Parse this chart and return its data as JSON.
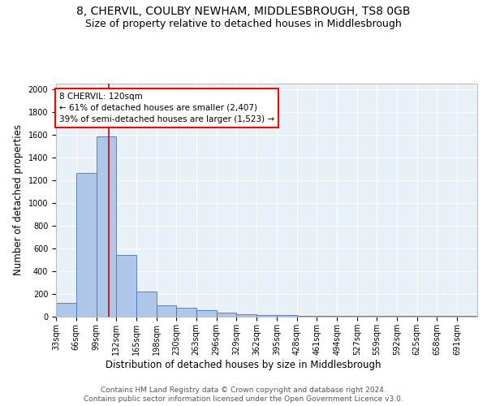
{
  "title": "8, CHERVIL, COULBY NEWHAM, MIDDLESBROUGH, TS8 0GB",
  "subtitle": "Size of property relative to detached houses in Middlesbrough",
  "xlabel": "Distribution of detached houses by size in Middlesbrough",
  "ylabel": "Number of detached properties",
  "footer_line1": "Contains HM Land Registry data © Crown copyright and database right 2024.",
  "footer_line2": "Contains public sector information licensed under the Open Government Licence v3.0.",
  "bin_labels": [
    "33sqm",
    "66sqm",
    "99sqm",
    "132sqm",
    "165sqm",
    "198sqm",
    "230sqm",
    "263sqm",
    "296sqm",
    "329sqm",
    "362sqm",
    "395sqm",
    "428sqm",
    "461sqm",
    "494sqm",
    "527sqm",
    "559sqm",
    "592sqm",
    "625sqm",
    "658sqm",
    "691sqm"
  ],
  "bin_edges": [
    33,
    66,
    99,
    132,
    165,
    198,
    230,
    263,
    296,
    329,
    362,
    395,
    428,
    461,
    494,
    527,
    559,
    592,
    625,
    658,
    691,
    724
  ],
  "values": [
    120,
    1260,
    1580,
    540,
    220,
    100,
    75,
    55,
    35,
    20,
    15,
    15,
    10,
    5,
    5,
    5,
    5,
    5,
    5,
    5,
    5
  ],
  "bar_color": "#aec6e8",
  "bar_edge_color": "#4472c4",
  "background_color": "#e8f0f8",
  "vline_x": 120,
  "vline_color": "#cc0000",
  "annotation_line1": "8 CHERVIL: 120sqm",
  "annotation_line2": "← 61% of detached houses are smaller (2,407)",
  "annotation_line3": "39% of semi-detached houses are larger (1,523) →",
  "ylim": [
    0,
    2050
  ],
  "yticks": [
    0,
    200,
    400,
    600,
    800,
    1000,
    1200,
    1400,
    1600,
    1800,
    2000
  ],
  "title_fontsize": 10,
  "subtitle_fontsize": 9,
  "axis_label_fontsize": 8.5,
  "tick_fontsize": 7,
  "annotation_fontsize": 7.5,
  "footer_fontsize": 6.5
}
